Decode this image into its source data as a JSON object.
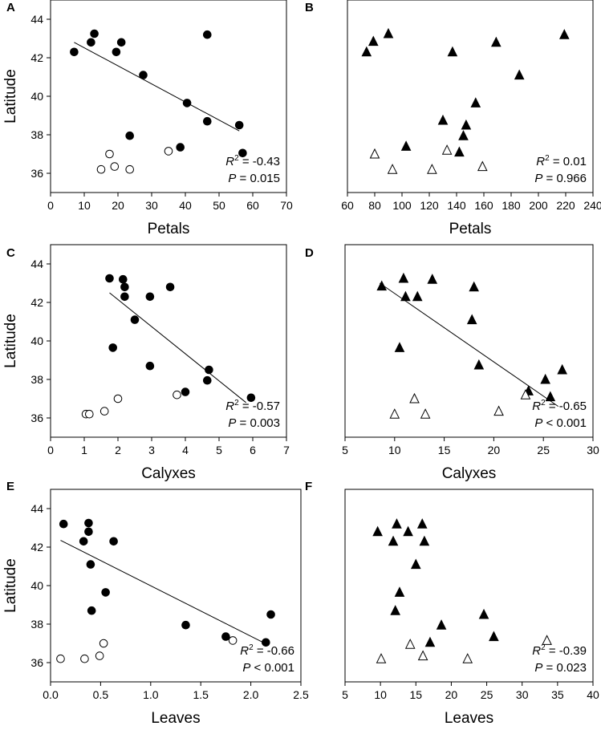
{
  "chart_data": [
    {
      "panel": "A",
      "type": "scatter",
      "xlabel": "Petals",
      "ylabel": "Latitude",
      "xlim": [
        0,
        70
      ],
      "ylim": [
        35,
        45
      ],
      "xticks": [
        0,
        10,
        20,
        30,
        40,
        50,
        60,
        70
      ],
      "yticks": [
        36,
        38,
        40,
        42,
        44
      ],
      "marker": "circle",
      "stats": {
        "r2_label": "R",
        "r2_sup": "2",
        "r2_value": " = -0.43",
        "p_label": "P",
        "p_value": " = 0.015"
      },
      "regression": {
        "x": [
          7,
          56
        ],
        "y": [
          42.8,
          38.2
        ]
      },
      "series": [
        {
          "name": "filled",
          "fill": "#000000",
          "points": [
            [
              7,
              42.3
            ],
            [
              12,
              42.8
            ],
            [
              13,
              43.25
            ],
            [
              19.5,
              42.3
            ],
            [
              21,
              42.8
            ],
            [
              27.5,
              41.1
            ],
            [
              46.5,
              43.2
            ],
            [
              40.5,
              39.65
            ],
            [
              46.5,
              38.7
            ],
            [
              56,
              38.5
            ],
            [
              23.5,
              37.95
            ],
            [
              38.5,
              37.35
            ],
            [
              57,
              37.05
            ]
          ]
        },
        {
          "name": "open",
          "fill": "#ffffff",
          "points": [
            [
              17.5,
              37.0
            ],
            [
              15,
              36.2
            ],
            [
              19,
              36.35
            ],
            [
              23.5,
              36.2
            ],
            [
              35,
              37.15
            ]
          ]
        }
      ]
    },
    {
      "panel": "B",
      "type": "scatter",
      "xlabel": "Petals",
      "ylabel": "",
      "xlim": [
        60,
        240
      ],
      "ylim": [
        35,
        45
      ],
      "xticks": [
        60,
        80,
        100,
        120,
        140,
        160,
        180,
        200,
        220,
        240
      ],
      "yticks": [],
      "marker": "triangle",
      "stats": {
        "r2_label": "R",
        "r2_sup": "2",
        "r2_value": " = 0.01",
        "p_label": "P",
        "p_value": " = 0.966"
      },
      "regression": null,
      "series": [
        {
          "name": "filled",
          "fill": "#000000",
          "points": [
            [
              74,
              42.3
            ],
            [
              79,
              42.85
            ],
            [
              90,
              43.25
            ],
            [
              103,
              37.4
            ],
            [
              130,
              38.75
            ],
            [
              137,
              42.3
            ],
            [
              142,
              37.1
            ],
            [
              145,
              37.95
            ],
            [
              147,
              38.5
            ],
            [
              154,
              39.65
            ],
            [
              169,
              42.8
            ],
            [
              186,
              41.1
            ],
            [
              219,
              43.2
            ]
          ]
        },
        {
          "name": "open",
          "fill": "#ffffff",
          "points": [
            [
              80,
              37.0
            ],
            [
              93,
              36.2
            ],
            [
              122,
              36.2
            ],
            [
              133,
              37.2
            ],
            [
              159,
              36.35
            ]
          ]
        }
      ]
    },
    {
      "panel": "C",
      "type": "scatter",
      "xlabel": "Calyxes",
      "ylabel": "Latitude",
      "xlim": [
        0,
        7
      ],
      "ylim": [
        35,
        45
      ],
      "xticks": [
        0,
        1,
        2,
        3,
        4,
        5,
        6,
        7
      ],
      "yticks": [
        36,
        38,
        40,
        42,
        44
      ],
      "marker": "circle",
      "stats": {
        "r2_label": "R",
        "r2_sup": "2",
        "r2_value": " = -0.57",
        "p_label": "P",
        "p_value": " = 0.003"
      },
      "regression": {
        "x": [
          1.75,
          5.8
        ],
        "y": [
          42.5,
          36.8
        ]
      },
      "series": [
        {
          "name": "filled",
          "fill": "#000000",
          "points": [
            [
              1.75,
              43.25
            ],
            [
              2.15,
              43.2
            ],
            [
              2.2,
              42.8
            ],
            [
              2.2,
              42.3
            ],
            [
              2.95,
              42.3
            ],
            [
              3.55,
              42.8
            ],
            [
              2.5,
              41.1
            ],
            [
              1.85,
              39.65
            ],
            [
              2.95,
              38.7
            ],
            [
              4.7,
              38.5
            ],
            [
              4.65,
              37.95
            ],
            [
              4.0,
              37.35
            ],
            [
              5.95,
              37.05
            ]
          ]
        },
        {
          "name": "open",
          "fill": "#ffffff",
          "points": [
            [
              1.05,
              36.2
            ],
            [
              1.15,
              36.2
            ],
            [
              1.6,
              36.35
            ],
            [
              2.0,
              37.0
            ],
            [
              3.75,
              37.2
            ]
          ]
        }
      ]
    },
    {
      "panel": "D",
      "type": "scatter",
      "xlabel": "Calyxes",
      "ylabel": "",
      "xlim": [
        5,
        30
      ],
      "ylim": [
        35,
        45
      ],
      "xticks": [
        5,
        10,
        15,
        20,
        25,
        30
      ],
      "yticks": [],
      "marker": "triangle",
      "stats": {
        "r2_label": "R",
        "r2_sup": "2",
        "r2_value": " = -0.65",
        "p_label": "P",
        "p_value": " < 0.001"
      },
      "regression": {
        "x": [
          8.5,
          26.5
        ],
        "y": [
          43.0,
          36.6
        ]
      },
      "series": [
        {
          "name": "filled",
          "fill": "#000000",
          "points": [
            [
              8.7,
              42.85
            ],
            [
              10.9,
              43.25
            ],
            [
              11.1,
              42.3
            ],
            [
              12.3,
              42.3
            ],
            [
              13.8,
              43.2
            ],
            [
              18.0,
              42.8
            ],
            [
              17.8,
              41.1
            ],
            [
              10.5,
              39.65
            ],
            [
              18.5,
              38.75
            ],
            [
              25.2,
              38.0
            ],
            [
              26.9,
              38.5
            ],
            [
              23.5,
              37.4
            ],
            [
              25.7,
              37.1
            ]
          ]
        },
        {
          "name": "open",
          "fill": "#ffffff",
          "points": [
            [
              10.0,
              36.2
            ],
            [
              12.0,
              37.0
            ],
            [
              13.1,
              36.2
            ],
            [
              20.5,
              36.35
            ],
            [
              23.2,
              37.2
            ]
          ]
        }
      ]
    },
    {
      "panel": "E",
      "type": "scatter",
      "xlabel": "Leaves",
      "ylabel": "Latitude",
      "xlim": [
        0,
        2.5
      ],
      "ylim": [
        35,
        45
      ],
      "xticks": [
        "0.0",
        "0.5",
        "1.0",
        "1.5",
        "2.0",
        "2.5"
      ],
      "yticks": [
        36,
        38,
        40,
        42,
        44
      ],
      "marker": "circle",
      "stats": {
        "r2_label": "R",
        "r2_sup": "2",
        "r2_value": " = -0.66",
        "p_label": "P",
        "p_value": " < 0.001"
      },
      "regression": {
        "x": [
          0.1,
          2.18
        ],
        "y": [
          42.35,
          36.9
        ]
      },
      "series": [
        {
          "name": "filled",
          "fill": "#000000",
          "points": [
            [
              0.13,
              43.2
            ],
            [
              0.38,
              43.25
            ],
            [
              0.38,
              42.8
            ],
            [
              0.33,
              42.3
            ],
            [
              0.63,
              42.3
            ],
            [
              0.4,
              41.1
            ],
            [
              0.55,
              39.65
            ],
            [
              0.41,
              38.7
            ],
            [
              1.35,
              37.95
            ],
            [
              2.2,
              38.5
            ],
            [
              1.75,
              37.35
            ],
            [
              2.15,
              37.05
            ]
          ]
        },
        {
          "name": "open",
          "fill": "#ffffff",
          "points": [
            [
              0.1,
              36.2
            ],
            [
              0.34,
              36.2
            ],
            [
              0.49,
              36.35
            ],
            [
              0.53,
              37.0
            ],
            [
              1.82,
              37.15
            ]
          ]
        }
      ]
    },
    {
      "panel": "F",
      "type": "scatter",
      "xlabel": "Leaves",
      "ylabel": "",
      "xlim": [
        5,
        40
      ],
      "ylim": [
        35,
        45
      ],
      "xticks": [
        5,
        10,
        15,
        20,
        25,
        30,
        35,
        40
      ],
      "yticks": [],
      "marker": "triangle",
      "stats": {
        "r2_label": "R",
        "r2_sup": "2",
        "r2_value": " = -0.39",
        "p_label": "P",
        "p_value": " = 0.023"
      },
      "regression": null,
      "series": [
        {
          "name": "filled",
          "fill": "#000000",
          "points": [
            [
              9.6,
              42.8
            ],
            [
              11.8,
              42.3
            ],
            [
              12.3,
              43.2
            ],
            [
              13.9,
              42.8
            ],
            [
              15.9,
              43.2
            ],
            [
              16.2,
              42.3
            ],
            [
              15.0,
              41.1
            ],
            [
              12.7,
              39.65
            ],
            [
              12.1,
              38.7
            ],
            [
              18.6,
              37.95
            ],
            [
              24.6,
              38.5
            ],
            [
              26.0,
              37.35
            ],
            [
              17.0,
              37.05
            ]
          ]
        },
        {
          "name": "open",
          "fill": "#ffffff",
          "points": [
            [
              10.1,
              36.2
            ],
            [
              14.2,
              36.95
            ],
            [
              16.0,
              36.35
            ],
            [
              22.3,
              36.2
            ],
            [
              33.5,
              37.15
            ]
          ]
        }
      ]
    }
  ]
}
